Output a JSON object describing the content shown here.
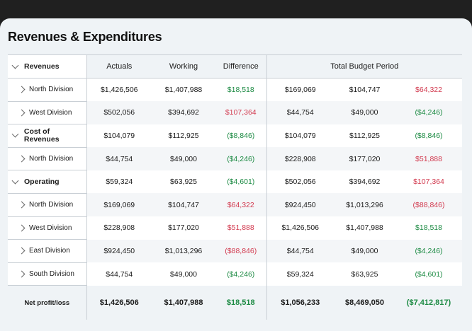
{
  "title": "Revenues & Expenditures",
  "header": {
    "group_label": "Revenues",
    "actuals": "Actuals",
    "working": "Working",
    "difference": "Difference",
    "total_budget_period": "Total Budget Period"
  },
  "rows": [
    {
      "label": "North Division",
      "kind": "sub",
      "actuals": "$1,426,506",
      "working": "$1,407,988",
      "difference": "$18,518",
      "difference_sign": "pos",
      "tb1": "$169,069",
      "tb2": "$104,747",
      "tb3": "$64,322",
      "tb3_sign": "neg"
    },
    {
      "label": "West Division",
      "kind": "sub",
      "actuals": "$502,056",
      "working": "$394,692",
      "difference": "$107,364",
      "difference_sign": "neg",
      "tb1": "$44,754",
      "tb2": "$49,000",
      "tb3": "($4,246)",
      "tb3_sign": "pos"
    },
    {
      "label": "Cost of Revenues",
      "kind": "group",
      "actuals": "$104,079",
      "working": "$112,925",
      "difference": "($8,846)",
      "difference_sign": "pos",
      "tb1": "$104,079",
      "tb2": "$112,925",
      "tb3": "($8,846)",
      "tb3_sign": "pos"
    },
    {
      "label": "North Division",
      "kind": "sub",
      "actuals": "$44,754",
      "working": "$49,000",
      "difference": "($4,246)",
      "difference_sign": "pos",
      "tb1": "$228,908",
      "tb2": "$177,020",
      "tb3": "$51,888",
      "tb3_sign": "neg"
    },
    {
      "label": "Operating",
      "kind": "group",
      "actuals": "$59,324",
      "working": "$63,925",
      "difference": "($4,601)",
      "difference_sign": "pos",
      "tb1": "$502,056",
      "tb2": "$394,692",
      "tb3": "$107,364",
      "tb3_sign": "neg"
    },
    {
      "label": "North Division",
      "kind": "sub",
      "actuals": "$169,069",
      "working": "$104,747",
      "difference": "$64,322",
      "difference_sign": "neg",
      "tb1": "$924,450",
      "tb2": "$1,013,296",
      "tb3": "($88,846)",
      "tb3_sign": "neg"
    },
    {
      "label": "West Division",
      "kind": "sub",
      "actuals": "$228,908",
      "working": "$177,020",
      "difference": "$51,888",
      "difference_sign": "neg",
      "tb1": "$1,426,506",
      "tb2": "$1,407,988",
      "tb3": "$18,518",
      "tb3_sign": "pos"
    },
    {
      "label": "East Division",
      "kind": "sub",
      "actuals": "$924,450",
      "working": "$1,013,296",
      "difference": "($88,846)",
      "difference_sign": "neg",
      "tb1": "$44,754",
      "tb2": "$49,000",
      "tb3": "($4,246)",
      "tb3_sign": "pos"
    },
    {
      "label": "South Division",
      "kind": "sub",
      "actuals": "$44,754",
      "working": "$49,000",
      "difference": "($4,246)",
      "difference_sign": "pos",
      "tb1": "$59,324",
      "tb2": "$63,925",
      "tb3": "($4,601)",
      "tb3_sign": "pos"
    }
  ],
  "total": {
    "label": "Net profit/loss",
    "actuals": "$1,426,506",
    "working": "$1,407,988",
    "difference": "$18,518",
    "tb1": "$1,056,233",
    "tb2": "$8,469,050",
    "tb3": "($7,412,817)"
  },
  "colors": {
    "positive": "#1c8a43",
    "negative": "#d23a4f"
  }
}
